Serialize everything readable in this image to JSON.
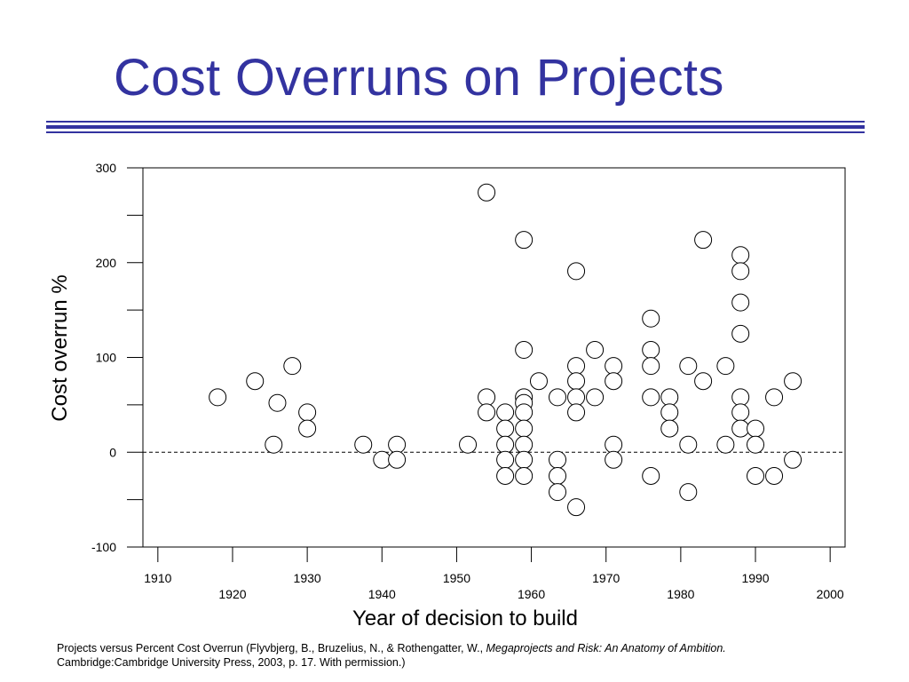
{
  "title": "Cost Overruns on Projects",
  "colors": {
    "title": "#3333a0",
    "rule": "#3333a0",
    "axis": "#000000"
  },
  "caption": {
    "prefix": "Projects versus Percent Cost Overrun (Flyvbjerg, B., Bruzelius, N., & Rothengatter, W., ",
    "italic": "Megaprojects and Risk: An Anatomy of Ambition.",
    "line2": "Cambridge:Cambridge University Press, 2003, p. 17.  With permission.)"
  },
  "chart_data": {
    "type": "scatter",
    "xlabel": "Year of decision to build",
    "ylabel": "Cost overrun %",
    "xlim": [
      1908,
      2002
    ],
    "ylim": [
      -100,
      300
    ],
    "xticks_upper": [
      1910,
      1930,
      1950,
      1970,
      1990
    ],
    "xticks_lower": [
      1920,
      1940,
      1960,
      1980,
      2000
    ],
    "yticks_labeled": [
      300,
      200,
      100,
      0,
      -100
    ],
    "yticks_minor": [
      250,
      150,
      50,
      -50
    ],
    "reference_line": {
      "y": 0,
      "style": "dashed"
    },
    "grid": false,
    "points": [
      [
        1918,
        58
      ],
      [
        1923,
        75
      ],
      [
        1925.5,
        8
      ],
      [
        1926,
        52
      ],
      [
        1928,
        91
      ],
      [
        1930,
        42
      ],
      [
        1930,
        25
      ],
      [
        1937.5,
        8
      ],
      [
        1940,
        -8
      ],
      [
        1942,
        8
      ],
      [
        1942,
        -8
      ],
      [
        1951.5,
        8
      ],
      [
        1954,
        274
      ],
      [
        1954,
        58
      ],
      [
        1954,
        42
      ],
      [
        1956.5,
        42
      ],
      [
        1956.5,
        25
      ],
      [
        1956.5,
        8
      ],
      [
        1956.5,
        -8
      ],
      [
        1956.5,
        -25
      ],
      [
        1959,
        224
      ],
      [
        1959,
        108
      ],
      [
        1959,
        58
      ],
      [
        1959,
        52
      ],
      [
        1959,
        42
      ],
      [
        1959,
        25
      ],
      [
        1959,
        8
      ],
      [
        1959,
        -8
      ],
      [
        1959,
        -25
      ],
      [
        1961,
        75
      ],
      [
        1963.5,
        58
      ],
      [
        1963.5,
        -8
      ],
      [
        1963.5,
        -25
      ],
      [
        1963.5,
        -42
      ],
      [
        1966,
        191
      ],
      [
        1966,
        91
      ],
      [
        1966,
        75
      ],
      [
        1966,
        58
      ],
      [
        1966,
        42
      ],
      [
        1966,
        -58
      ],
      [
        1968.5,
        108
      ],
      [
        1968.5,
        58
      ],
      [
        1971,
        91
      ],
      [
        1971,
        75
      ],
      [
        1971,
        8
      ],
      [
        1971,
        -8
      ],
      [
        1976,
        141
      ],
      [
        1976,
        108
      ],
      [
        1976,
        91
      ],
      [
        1976,
        58
      ],
      [
        1976,
        -25
      ],
      [
        1978.5,
        58
      ],
      [
        1978.5,
        42
      ],
      [
        1978.5,
        25
      ],
      [
        1981,
        91
      ],
      [
        1981,
        8
      ],
      [
        1981,
        -42
      ],
      [
        1983,
        224
      ],
      [
        1983,
        75
      ],
      [
        1986,
        91
      ],
      [
        1986,
        8
      ],
      [
        1988,
        208
      ],
      [
        1988,
        191
      ],
      [
        1988,
        158
      ],
      [
        1988,
        125
      ],
      [
        1988,
        58
      ],
      [
        1988,
        42
      ],
      [
        1988,
        25
      ],
      [
        1990,
        25
      ],
      [
        1990,
        8
      ],
      [
        1990,
        -25
      ],
      [
        1992.5,
        58
      ],
      [
        1992.5,
        -25
      ],
      [
        1995,
        75
      ],
      [
        1995,
        -8
      ]
    ]
  }
}
